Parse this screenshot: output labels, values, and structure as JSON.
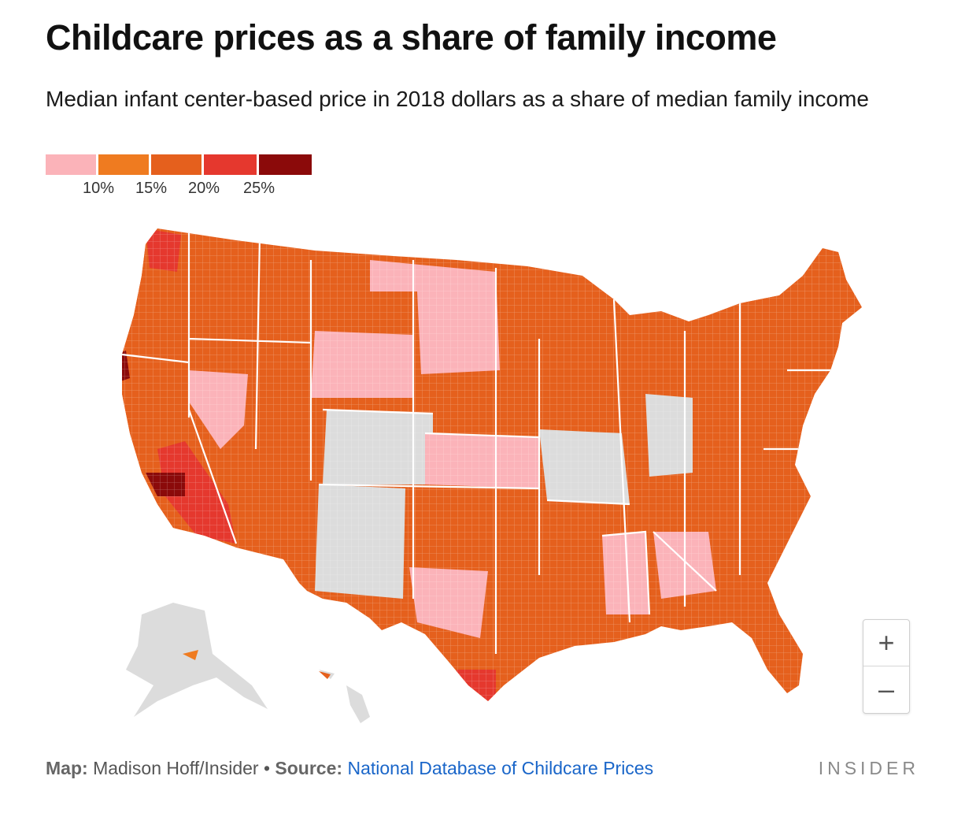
{
  "title": "Childcare prices as a share of family income",
  "subtitle": "Median infant center-based price in 2018 dollars as a share of median family income",
  "legend": {
    "colors": [
      "#fbb3b9",
      "#ef7b20",
      "#e5601d",
      "#e5382e",
      "#8b0a0a"
    ],
    "ticks": [
      "10%",
      "15%",
      "20%",
      "25%"
    ],
    "no_data_color": "#dcdcdc"
  },
  "map": {
    "name": "United States counties",
    "zoom_in_label": "+",
    "zoom_out_label": "–"
  },
  "footer": {
    "map_label": "Map:",
    "map_credit": "Madison Hoff/Insider",
    "bullet": "•",
    "source_label": "Source:",
    "source_text": "National Database of Childcare Prices"
  },
  "brand": "INSIDER"
}
